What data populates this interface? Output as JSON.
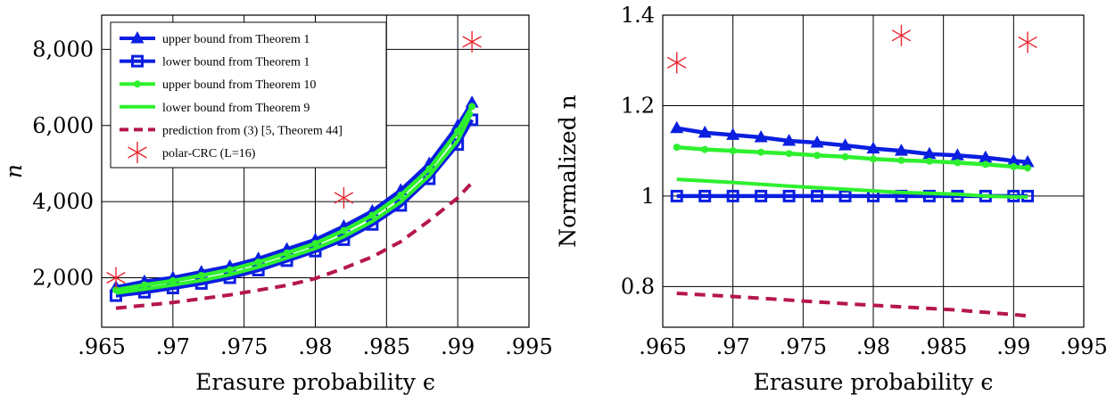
{
  "colors": {
    "blue": "#0a1fe0",
    "green": "#2ef02e",
    "darkred": "#b5174b",
    "red": "#e8262f",
    "grid": "#000000"
  },
  "chart_data": [
    {
      "type": "line",
      "xlabel": "Erasure probability ϵ",
      "ylabel": "n",
      "xlim": [
        0.965,
        0.995
      ],
      "ylim": [
        700,
        8900
      ],
      "x_ticks": [
        ".965",
        ".97",
        ".975",
        ".98",
        ".985",
        ".99",
        ".995"
      ],
      "y_ticks": [
        "2,000",
        "4,000",
        "6,000",
        "8,000"
      ],
      "grid": true,
      "legend_position": "top-left",
      "series": [
        {
          "name": "upper bound from Theorem 1",
          "marker": "triangle",
          "color": "blue",
          "x": [
            0.966,
            0.968,
            0.97,
            0.972,
            0.974,
            0.976,
            0.978,
            0.98,
            0.982,
            0.984,
            0.986,
            0.988,
            0.99,
            0.991
          ],
          "y": [
            1750,
            1900,
            2000,
            2150,
            2300,
            2500,
            2750,
            3000,
            3350,
            3750,
            4300,
            5000,
            6000,
            6600
          ]
        },
        {
          "name": "lower bound from Theorem 1",
          "marker": "square",
          "color": "blue",
          "x": [
            0.966,
            0.968,
            0.97,
            0.972,
            0.974,
            0.976,
            0.978,
            0.98,
            0.982,
            0.984,
            0.986,
            0.988,
            0.99,
            0.991
          ],
          "y": [
            1530,
            1620,
            1730,
            1850,
            2000,
            2200,
            2450,
            2700,
            3000,
            3400,
            3900,
            4600,
            5500,
            6150
          ]
        },
        {
          "name": "upper bound from Theorem 10",
          "marker": "circle",
          "color": "green",
          "x": [
            0.966,
            0.968,
            0.97,
            0.972,
            0.974,
            0.976,
            0.978,
            0.98,
            0.982,
            0.984,
            0.986,
            0.988,
            0.99,
            0.991
          ],
          "y": [
            1680,
            1810,
            1920,
            2060,
            2210,
            2410,
            2650,
            2900,
            3240,
            3640,
            4170,
            4860,
            5850,
            6500
          ]
        },
        {
          "name": "lower bound from Theorem 9",
          "marker": "none",
          "color": "green",
          "x": [
            0.966,
            0.968,
            0.97,
            0.972,
            0.974,
            0.976,
            0.978,
            0.98,
            0.982,
            0.984,
            0.986,
            0.988,
            0.99,
            0.991
          ],
          "y": [
            1600,
            1700,
            1810,
            1930,
            2080,
            2280,
            2520,
            2770,
            3080,
            3480,
            3990,
            4680,
            5600,
            6350
          ]
        },
        {
          "name": "prediction from (3) [5, Theorem 44]",
          "marker": "none",
          "dashed": true,
          "color": "darkred",
          "x": [
            0.966,
            0.97,
            0.974,
            0.978,
            0.98,
            0.982,
            0.984,
            0.986,
            0.988,
            0.99,
            0.991
          ],
          "y": [
            1200,
            1350,
            1550,
            1800,
            1980,
            2250,
            2550,
            2950,
            3500,
            4100,
            4500
          ]
        },
        {
          "name": "polar-CRC (L=16)",
          "marker": "asterisk",
          "line": false,
          "color": "red",
          "x": [
            0.966,
            0.982,
            0.991
          ],
          "y": [
            2000,
            4100,
            8200
          ]
        }
      ]
    },
    {
      "type": "line",
      "xlabel": "Erasure probability ϵ",
      "ylabel": "Normalized n",
      "xlim": [
        0.965,
        0.995
      ],
      "ylim": [
        0.71,
        1.4
      ],
      "x_ticks": [
        ".965",
        ".97",
        ".975",
        ".98",
        ".985",
        ".99",
        ".995"
      ],
      "y_ticks": [
        "0.8",
        "1",
        "1.2",
        "1.4"
      ],
      "grid": true,
      "series": [
        {
          "name": "upper bound from Theorem 1",
          "marker": "triangle",
          "color": "blue",
          "x": [
            0.966,
            0.968,
            0.97,
            0.972,
            0.974,
            0.976,
            0.978,
            0.98,
            0.982,
            0.984,
            0.986,
            0.988,
            0.99,
            0.991
          ],
          "y": [
            1.15,
            1.14,
            1.135,
            1.13,
            1.122,
            1.118,
            1.112,
            1.105,
            1.1,
            1.093,
            1.09,
            1.085,
            1.078,
            1.075
          ]
        },
        {
          "name": "lower bound from Theorem 1",
          "marker": "square",
          "color": "blue",
          "x": [
            0.966,
            0.968,
            0.97,
            0.972,
            0.974,
            0.976,
            0.978,
            0.98,
            0.982,
            0.984,
            0.986,
            0.988,
            0.99,
            0.991
          ],
          "y": [
            1,
            1,
            1,
            1,
            1,
            1,
            1,
            1,
            1,
            1,
            1,
            1,
            1,
            1
          ]
        },
        {
          "name": "upper bound from Theorem 10",
          "marker": "circle",
          "color": "green",
          "x": [
            0.966,
            0.968,
            0.97,
            0.972,
            0.974,
            0.976,
            0.978,
            0.98,
            0.982,
            0.984,
            0.986,
            0.988,
            0.99,
            0.991
          ],
          "y": [
            1.108,
            1.103,
            1.1,
            1.097,
            1.094,
            1.09,
            1.087,
            1.082,
            1.079,
            1.077,
            1.074,
            1.07,
            1.065,
            1.062
          ]
        },
        {
          "name": "lower bound from Theorem 9",
          "marker": "none",
          "color": "green",
          "x": [
            0.966,
            0.97,
            0.974,
            0.978,
            0.982,
            0.986,
            0.988,
            0.99,
            0.991
          ],
          "y": [
            1.037,
            1.03,
            1.022,
            1.015,
            1.008,
            1.004,
            1.0,
            0.998,
            0.998
          ]
        },
        {
          "name": "prediction from (3) [5, Theorem 44]",
          "marker": "none",
          "dashed": true,
          "color": "darkred",
          "x": [
            0.966,
            0.97,
            0.974,
            0.978,
            0.982,
            0.986,
            0.99,
            0.991
          ],
          "y": [
            0.785,
            0.778,
            0.77,
            0.762,
            0.755,
            0.748,
            0.738,
            0.735
          ]
        },
        {
          "name": "polar-CRC (L=16)",
          "marker": "asterisk",
          "line": false,
          "color": "red",
          "x": [
            0.966,
            0.982,
            0.991
          ],
          "y": [
            1.295,
            1.355,
            1.34
          ]
        }
      ]
    }
  ]
}
